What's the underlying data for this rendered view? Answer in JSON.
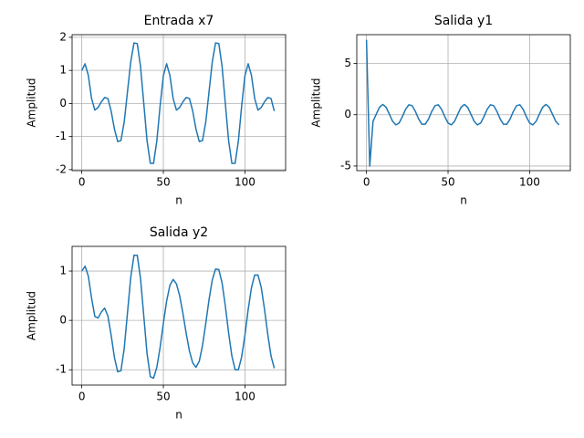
{
  "chart_data": [
    {
      "type": "line",
      "title": "Entrada x7",
      "x_label": "n",
      "y_label": "Amplitud",
      "grid": true,
      "xlim": [
        -5.95,
        124.95
      ],
      "xticks": [
        0,
        50,
        100
      ],
      "ylim": [
        -2.03,
        2.08
      ],
      "yticks": [
        -2,
        -1,
        0,
        1,
        2
      ],
      "x": [
        0,
        2,
        4,
        6,
        8,
        10,
        12,
        14,
        16,
        18,
        20,
        22,
        24,
        26,
        28,
        30,
        32,
        34,
        36,
        38,
        40,
        42,
        44,
        46,
        48,
        50,
        52,
        54,
        56,
        58,
        60,
        62,
        64,
        66,
        68,
        70,
        72,
        74,
        76,
        78,
        80,
        82,
        84,
        86,
        88,
        90,
        92,
        94,
        96,
        98,
        100,
        102,
        104,
        106,
        108,
        110,
        112,
        114,
        116,
        118
      ],
      "series": [
        {
          "color": "#1f77b4",
          "values": [
            1.0,
            1.2,
            0.85,
            0.15,
            -0.2,
            -0.12,
            0.05,
            0.18,
            0.15,
            -0.23,
            -0.77,
            -1.15,
            -1.12,
            -0.56,
            0.35,
            1.26,
            1.83,
            1.81,
            1.12,
            0,
            -1.12,
            -1.81,
            -1.81,
            -1.13,
            -0.08,
            0.84,
            1.2,
            0.85,
            0.15,
            -0.2,
            -0.12,
            0.05,
            0.18,
            0.15,
            -0.23,
            -0.77,
            -1.15,
            -1.12,
            -0.56,
            0.35,
            1.26,
            1.83,
            1.81,
            1.12,
            0,
            -1.12,
            -1.81,
            -1.81,
            -1.13,
            -0.08,
            0.84,
            1.2,
            0.85,
            0.15,
            -0.2,
            -0.12,
            0.05,
            0.18,
            0.15,
            -0.23
          ]
        }
      ]
    },
    {
      "type": "line",
      "title": "Salida y1",
      "x_label": "n",
      "y_label": "Amplitud",
      "grid": true,
      "xlim": [
        -5.95,
        124.95
      ],
      "xticks": [
        0,
        50,
        100
      ],
      "ylim": [
        -5.45,
        7.8
      ],
      "yticks": [
        -5,
        0,
        5
      ],
      "x": [
        0,
        2,
        4,
        6,
        8,
        10,
        12,
        14,
        16,
        18,
        20,
        22,
        24,
        26,
        28,
        30,
        32,
        34,
        36,
        38,
        40,
        42,
        44,
        46,
        48,
        50,
        52,
        54,
        56,
        58,
        60,
        62,
        64,
        66,
        68,
        70,
        72,
        74,
        76,
        78,
        80,
        82,
        84,
        86,
        88,
        90,
        92,
        94,
        96,
        98,
        100,
        102,
        104,
        106,
        108,
        110,
        112,
        114,
        116,
        118
      ],
      "series": [
        {
          "color": "#1f77b4",
          "values": [
            7.3,
            -5.0,
            -0.64,
            0.06,
            0.73,
            1,
            0.73,
            0.06,
            -0.64,
            -0.99,
            -0.81,
            -0.19,
            0.54,
            0.97,
            0.88,
            0.31,
            -0.43,
            -0.93,
            -0.93,
            -0.43,
            0.31,
            0.88,
            0.97,
            0.54,
            -0.19,
            -0.81,
            -0.99,
            -0.64,
            0.06,
            0.73,
            1,
            0.73,
            0.06,
            -0.64,
            -0.99,
            -0.81,
            -0.19,
            0.54,
            0.97,
            0.88,
            0.31,
            -0.43,
            -0.93,
            -0.93,
            -0.43,
            0.31,
            0.88,
            0.97,
            0.54,
            -0.19,
            -0.81,
            -0.99,
            -0.64,
            0.06,
            0.73,
            1,
            0.73,
            0.06,
            -0.64,
            -0.99
          ]
        }
      ]
    },
    {
      "type": "line",
      "title": "Salida y2",
      "x_label": "n",
      "y_label": "Amplitud",
      "grid": true,
      "xlim": [
        -5.95,
        124.95
      ],
      "xticks": [
        0,
        50,
        100
      ],
      "ylim": [
        -1.31,
        1.5
      ],
      "yticks": [
        -1,
        0,
        1
      ],
      "x": [
        0,
        2,
        4,
        6,
        8,
        10,
        12,
        14,
        16,
        18,
        20,
        22,
        24,
        26,
        28,
        30,
        32,
        34,
        36,
        38,
        40,
        42,
        44,
        46,
        48,
        50,
        52,
        54,
        56,
        58,
        60,
        62,
        64,
        66,
        68,
        70,
        72,
        74,
        76,
        78,
        80,
        82,
        84,
        86,
        88,
        90,
        92,
        94,
        96,
        98,
        100,
        102,
        104,
        106,
        108,
        110,
        112,
        114,
        116,
        118
      ],
      "series": [
        {
          "color": "#1f77b4",
          "values": [
            1.0,
            1.1,
            0.9,
            0.45,
            0.08,
            0.05,
            0.17,
            0.25,
            0.09,
            -0.3,
            -0.75,
            -1.04,
            -1.02,
            -0.57,
            0.15,
            0.87,
            1.32,
            1.32,
            0.85,
            0.09,
            -0.67,
            -1.14,
            -1.17,
            -0.95,
            -0.55,
            -0.06,
            0.39,
            0.71,
            0.83,
            0.74,
            0.5,
            0.14,
            -0.26,
            -0.62,
            -0.86,
            -0.95,
            -0.83,
            -0.51,
            -0.06,
            0.42,
            0.82,
            1.04,
            1.03,
            0.76,
            0.29,
            -0.25,
            -0.72,
            -1.0,
            -1.0,
            -0.74,
            -0.3,
            0.22,
            0.66,
            0.92,
            0.92,
            0.67,
            0.23,
            -0.28,
            -0.72,
            -0.97
          ]
        }
      ]
    }
  ]
}
